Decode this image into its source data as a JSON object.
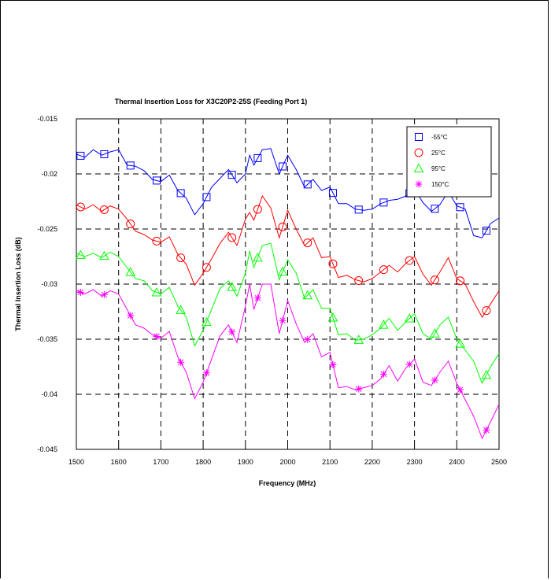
{
  "chart_data": {
    "type": "line",
    "title": "Thermal Insertion Loss for X3C20P2-25S (Feeding Port 1)",
    "xlabel": "Frequency (MHz)",
    "ylabel": "Thermal Insertion Loss (dB)",
    "xlim": [
      1500,
      2500
    ],
    "ylim": [
      -0.045,
      -0.015
    ],
    "xticks": [
      1500,
      1600,
      1700,
      1800,
      1900,
      2000,
      2100,
      2200,
      2300,
      2400,
      2500
    ],
    "yticks": [
      -0.015,
      -0.02,
      -0.025,
      -0.03,
      -0.035,
      -0.04,
      -0.045
    ],
    "xtick_labels": [
      "1500",
      "1600",
      "1700",
      "1800",
      "1900",
      "2000",
      "2100",
      "2200",
      "2300",
      "2400",
      "2500"
    ],
    "ytick_labels": [
      "-0.015",
      "-0.02",
      "-0.025",
      "-0.03",
      "-0.035",
      "-0.04",
      "-0.045"
    ],
    "grid": true,
    "legend_position": "top-right",
    "series": [
      {
        "name": "-55°C",
        "color": "#0000ff",
        "marker": "square",
        "x": [
          1500,
          1520,
          1540,
          1560,
          1580,
          1600,
          1620,
          1640,
          1660,
          1680,
          1700,
          1720,
          1740,
          1760,
          1780,
          1800,
          1820,
          1840,
          1860,
          1880,
          1900,
          1910,
          1920,
          1940,
          1960,
          1980,
          2000,
          2020,
          2040,
          2060,
          2080,
          2100,
          2120,
          2140,
          2160,
          2180,
          2200,
          2220,
          2240,
          2260,
          2280,
          2300,
          2320,
          2340,
          2360,
          2380,
          2400,
          2420,
          2440,
          2460,
          2480,
          2500
        ],
        "y": [
          -0.0182,
          -0.0185,
          -0.0178,
          -0.0183,
          -0.018,
          -0.0178,
          -0.0192,
          -0.0193,
          -0.0197,
          -0.0205,
          -0.0207,
          -0.0201,
          -0.0215,
          -0.0222,
          -0.0237,
          -0.0227,
          -0.0212,
          -0.0204,
          -0.0196,
          -0.0208,
          -0.02,
          -0.0183,
          -0.0192,
          -0.0178,
          -0.0177,
          -0.02,
          -0.0183,
          -0.0196,
          -0.0212,
          -0.0205,
          -0.0215,
          -0.0212,
          -0.0227,
          -0.0227,
          -0.0232,
          -0.0233,
          -0.0232,
          -0.0227,
          -0.0224,
          -0.0223,
          -0.022,
          -0.0214,
          -0.0226,
          -0.0234,
          -0.0228,
          -0.0216,
          -0.0229,
          -0.0232,
          -0.0256,
          -0.0258,
          -0.0245,
          -0.024
        ],
        "marker_x": [
          1510,
          1566,
          1628,
          1690,
          1747,
          1808,
          1868,
          1929,
          1988,
          2047,
          2107,
          2168,
          2227,
          2288,
          2348,
          2408,
          2470
        ]
      },
      {
        "name": "25°C",
        "color": "#ff0000",
        "marker": "circle",
        "x": [
          1500,
          1520,
          1540,
          1560,
          1580,
          1600,
          1620,
          1640,
          1660,
          1680,
          1700,
          1720,
          1740,
          1760,
          1780,
          1800,
          1820,
          1840,
          1860,
          1880,
          1900,
          1910,
          1920,
          1940,
          1960,
          1980,
          2000,
          2020,
          2040,
          2060,
          2080,
          2100,
          2120,
          2140,
          2160,
          2180,
          2200,
          2220,
          2240,
          2260,
          2280,
          2300,
          2320,
          2340,
          2360,
          2380,
          2400,
          2420,
          2440,
          2460,
          2480,
          2500
        ],
        "y": [
          -0.0228,
          -0.0232,
          -0.0228,
          -0.0234,
          -0.0229,
          -0.0232,
          -0.0241,
          -0.0252,
          -0.0255,
          -0.026,
          -0.0262,
          -0.0257,
          -0.0273,
          -0.0282,
          -0.0301,
          -0.029,
          -0.0277,
          -0.0263,
          -0.0253,
          -0.0265,
          -0.0241,
          -0.0235,
          -0.0242,
          -0.022,
          -0.0231,
          -0.0258,
          -0.0233,
          -0.025,
          -0.0265,
          -0.0258,
          -0.0276,
          -0.0275,
          -0.0294,
          -0.0292,
          -0.0296,
          -0.0298,
          -0.0295,
          -0.0289,
          -0.0283,
          -0.0289,
          -0.0281,
          -0.0275,
          -0.0291,
          -0.0301,
          -0.0289,
          -0.0276,
          -0.0295,
          -0.03,
          -0.0316,
          -0.033,
          -0.0318,
          -0.0306
        ],
        "marker_x": [
          1510,
          1566,
          1628,
          1690,
          1747,
          1808,
          1868,
          1929,
          1988,
          2047,
          2107,
          2168,
          2227,
          2288,
          2348,
          2408,
          2470
        ]
      },
      {
        "name": "95°C",
        "color": "#00ff00",
        "marker": "triangle",
        "x": [
          1500,
          1520,
          1540,
          1560,
          1580,
          1600,
          1620,
          1640,
          1660,
          1680,
          1700,
          1720,
          1740,
          1760,
          1780,
          1800,
          1820,
          1840,
          1860,
          1880,
          1900,
          1910,
          1920,
          1940,
          1960,
          1980,
          2000,
          2020,
          2040,
          2060,
          2080,
          2100,
          2120,
          2140,
          2160,
          2180,
          2200,
          2220,
          2240,
          2260,
          2280,
          2300,
          2320,
          2340,
          2360,
          2380,
          2400,
          2420,
          2440,
          2460,
          2480,
          2500
        ],
        "y": [
          -0.0272,
          -0.0275,
          -0.0272,
          -0.0276,
          -0.0271,
          -0.0275,
          -0.0285,
          -0.0295,
          -0.0297,
          -0.0306,
          -0.0309,
          -0.0303,
          -0.032,
          -0.033,
          -0.0356,
          -0.0342,
          -0.0323,
          -0.0304,
          -0.0297,
          -0.0311,
          -0.029,
          -0.027,
          -0.0285,
          -0.0265,
          -0.0263,
          -0.0296,
          -0.0278,
          -0.029,
          -0.0313,
          -0.0305,
          -0.0322,
          -0.0322,
          -0.0346,
          -0.0345,
          -0.0351,
          -0.035,
          -0.0346,
          -0.034,
          -0.0331,
          -0.0342,
          -0.0334,
          -0.0327,
          -0.0345,
          -0.035,
          -0.0337,
          -0.033,
          -0.035,
          -0.036,
          -0.037,
          -0.039,
          -0.0375,
          -0.0363
        ],
        "marker_x": [
          1510,
          1566,
          1628,
          1690,
          1747,
          1808,
          1868,
          1929,
          1988,
          2047,
          2107,
          2168,
          2227,
          2288,
          2348,
          2408,
          2470
        ]
      },
      {
        "name": "150°C",
        "color": "#ff00ff",
        "marker": "asterisk",
        "x": [
          1500,
          1520,
          1540,
          1560,
          1580,
          1600,
          1620,
          1640,
          1660,
          1680,
          1700,
          1720,
          1740,
          1760,
          1780,
          1800,
          1820,
          1840,
          1860,
          1880,
          1900,
          1910,
          1920,
          1940,
          1960,
          1980,
          2000,
          2020,
          2040,
          2060,
          2080,
          2100,
          2120,
          2140,
          2160,
          2180,
          2200,
          2220,
          2240,
          2260,
          2280,
          2300,
          2320,
          2340,
          2360,
          2380,
          2400,
          2420,
          2440,
          2460,
          2480,
          2500
        ],
        "y": [
          -0.0306,
          -0.0309,
          -0.0305,
          -0.0311,
          -0.0306,
          -0.0309,
          -0.0323,
          -0.0337,
          -0.034,
          -0.0346,
          -0.0349,
          -0.0343,
          -0.0366,
          -0.038,
          -0.0404,
          -0.0389,
          -0.0368,
          -0.0347,
          -0.0337,
          -0.0353,
          -0.032,
          -0.03,
          -0.0323,
          -0.03,
          -0.03,
          -0.0345,
          -0.0315,
          -0.0336,
          -0.0353,
          -0.0345,
          -0.0366,
          -0.0362,
          -0.0394,
          -0.0393,
          -0.0396,
          -0.0394,
          -0.0392,
          -0.0386,
          -0.0374,
          -0.0388,
          -0.0376,
          -0.0368,
          -0.0389,
          -0.0392,
          -0.038,
          -0.037,
          -0.039,
          -0.0405,
          -0.042,
          -0.044,
          -0.0425,
          -0.0409
        ],
        "marker_x": [
          1510,
          1566,
          1628,
          1690,
          1747,
          1808,
          1868,
          1929,
          1988,
          2047,
          2107,
          2168,
          2227,
          2288,
          2348,
          2408,
          2470
        ]
      }
    ]
  }
}
